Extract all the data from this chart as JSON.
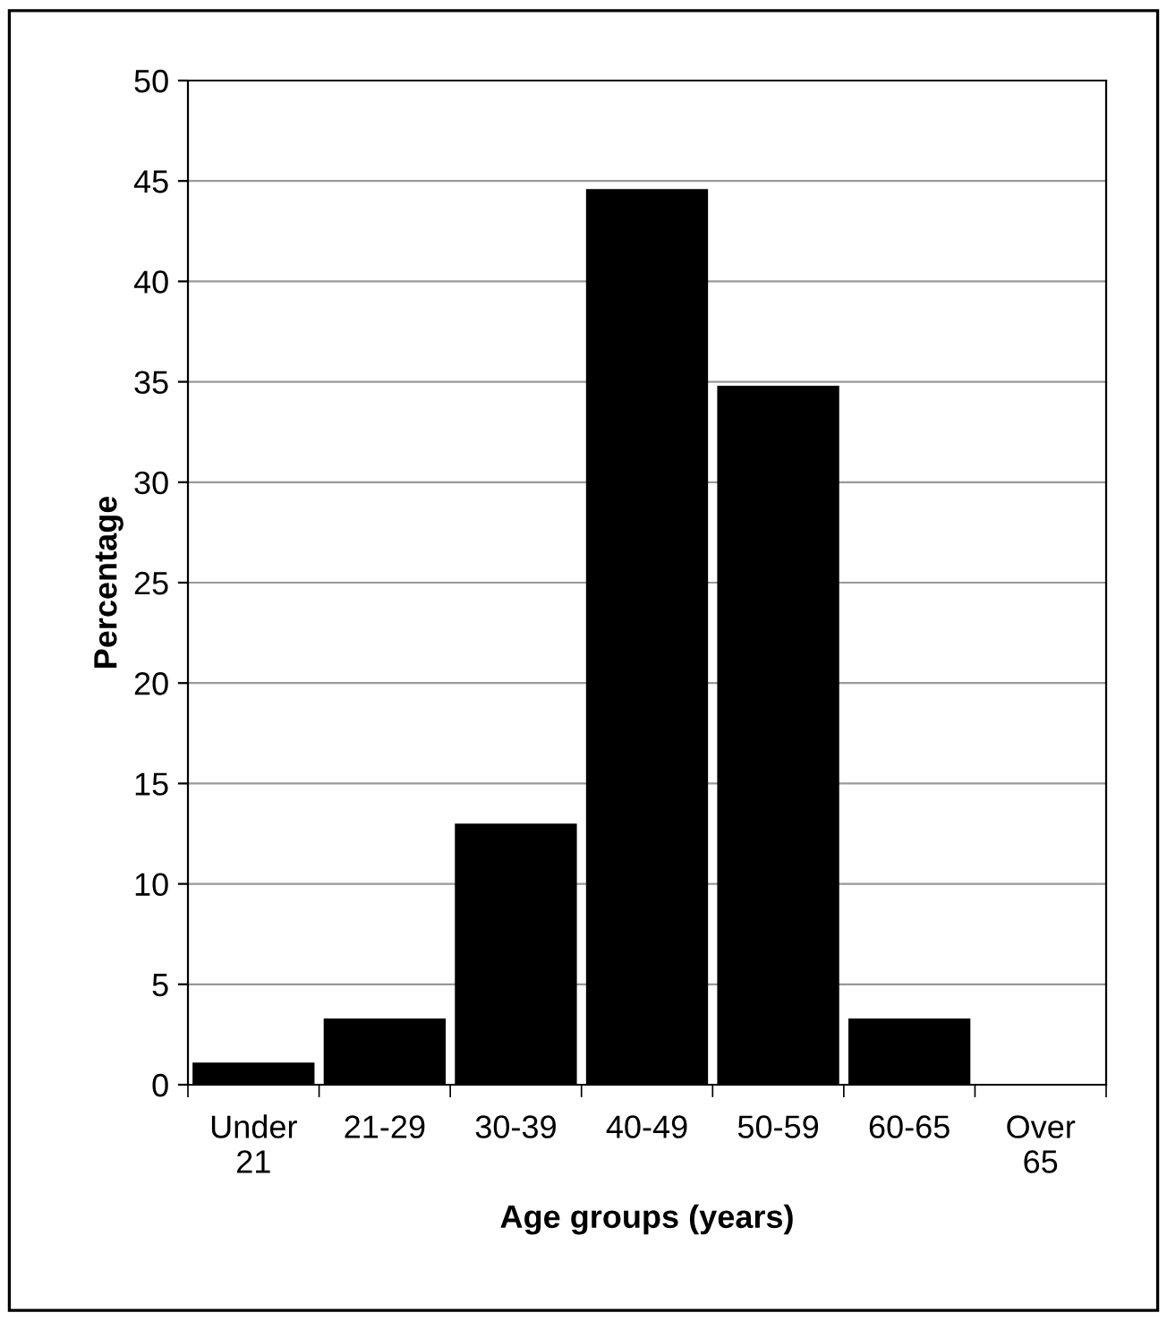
{
  "chart_data": {
    "type": "bar",
    "xlabel": "Age groups (years)",
    "ylabel": "Percentage",
    "categories": [
      "Under\n21",
      "21-29",
      "30-39",
      "40-49",
      "50-59",
      "60-65",
      "Over\n65"
    ],
    "values": [
      1.1,
      3.3,
      13.0,
      44.6,
      34.8,
      3.3,
      0
    ],
    "color": "#000000",
    "ylim": [
      0,
      50
    ],
    "yticks": [
      0,
      5,
      10,
      15,
      20,
      25,
      30,
      35,
      40,
      45,
      50
    ],
    "grid": "y"
  }
}
